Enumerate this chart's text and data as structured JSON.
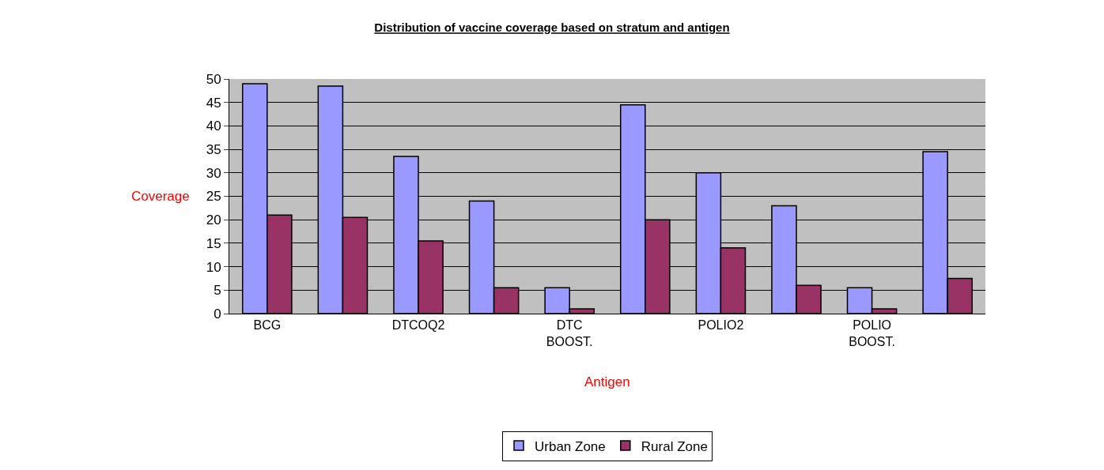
{
  "chart_data": {
    "type": "bar",
    "title": "Distribution of vaccine coverage based on stratum and antigen",
    "xlabel": "Antigen",
    "ylabel": "Coverage",
    "categories": [
      "BCG",
      null,
      "DTCOQ2",
      null,
      "DTC\nBOOST.",
      null,
      "POLIO2",
      null,
      "POLIO\nBOOST.",
      null
    ],
    "series": [
      {
        "name": "Urban Zone",
        "color": "#9999ff",
        "values": [
          49,
          48.5,
          33.5,
          24,
          5.5,
          44.5,
          30,
          23,
          5.5,
          34.5
        ]
      },
      {
        "name": "Rural Zone",
        "color": "#993366",
        "values": [
          21,
          20.5,
          15.5,
          5.5,
          1,
          20,
          14,
          6,
          1,
          7.5
        ]
      }
    ],
    "ylim": [
      0,
      50
    ],
    "yticks": [
      0,
      5,
      10,
      15,
      20,
      25,
      30,
      35,
      40,
      45,
      50
    ],
    "grid": "y",
    "legend": "bottom"
  }
}
